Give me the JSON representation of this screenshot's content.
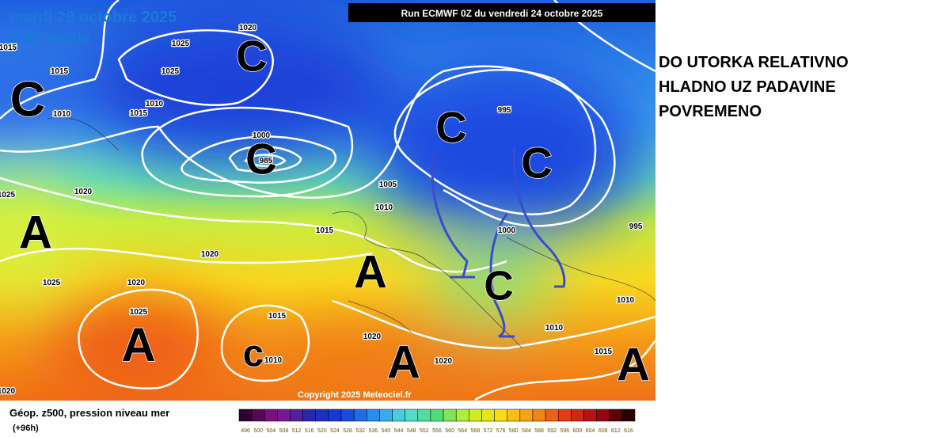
{
  "map": {
    "date": "mardi 28 octobre 2025",
    "time": "2:00 locale",
    "run": "Run ECMWF 0Z du vendredi 24 octobre 2025",
    "copyright": "Copyright 2025 Meteociel.fr",
    "pressure_systems": [
      "C",
      "C",
      "C",
      "C",
      "C",
      "C",
      "A",
      "A",
      "A",
      "c",
      "A",
      "A"
    ],
    "isobar_labels": [
      "1020",
      "1025",
      "1025",
      "1015",
      "1015",
      "1010",
      "1015",
      "1010",
      "1000",
      "985",
      "1005",
      "1010",
      "1015",
      "1020",
      "1025",
      "1020",
      "1025",
      "1020",
      "1025",
      "1015",
      "1010",
      "1020",
      "1020",
      "995",
      "995",
      "1000",
      "1010",
      "1010",
      "1015",
      "1020"
    ]
  },
  "annotation": [
    "DO UTORKA RELATIVNO",
    "HLADNO UZ PADAVINE",
    "POVREMENO"
  ],
  "legend": {
    "title": "Géop. z500, pression niveau mer",
    "lead": "(+96h)",
    "scale": [
      "496",
      "500",
      "504",
      "508",
      "512",
      "516",
      "520",
      "524",
      "528",
      "532",
      "536",
      "540",
      "544",
      "548",
      "552",
      "556",
      "560",
      "564",
      "568",
      "572",
      "576",
      "580",
      "584",
      "588",
      "592",
      "596",
      "600",
      "604",
      "608",
      "612",
      "616"
    ]
  }
}
